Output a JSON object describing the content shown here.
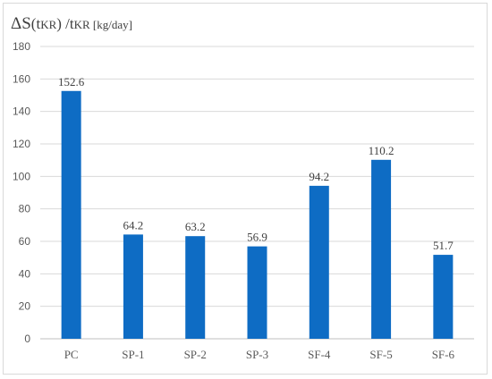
{
  "chart_data": {
    "type": "bar",
    "title": "",
    "ylabel": {
      "prefix": "ΔS",
      "paren_open": "(t",
      "paren_sub": "KR",
      "paren_close": ") /t",
      "denom_sub": "KR",
      "unit": " [kg/day]"
    },
    "xlabel": "",
    "categories": [
      "PC",
      "SP-1",
      "SP-2",
      "SP-3",
      "SF-4",
      "SF-5",
      "SF-6"
    ],
    "values": [
      152.6,
      64.2,
      63.2,
      56.9,
      94.2,
      110.2,
      51.7
    ],
    "data_labels": [
      "152.6",
      "64.2",
      "63.2",
      "56.9",
      "94.2",
      "110.2",
      "51.7"
    ],
    "ylim": [
      0,
      180
    ],
    "yticks": [
      0,
      20,
      40,
      60,
      80,
      100,
      120,
      140,
      160,
      180
    ],
    "grid": true,
    "legend": "none",
    "bar_color": "#0e6cc4",
    "grid_color": "#d9d9d9"
  }
}
